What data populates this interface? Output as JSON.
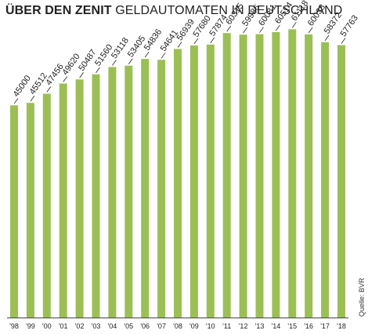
{
  "title": {
    "bold": "ÜBER DEN ZENIT",
    "light": "GELDAUTOMATEN IN DEUTSCHLAND"
  },
  "source": "Quelle: BVR",
  "colors": {
    "bar": "#9bbf55",
    "line": "#222222"
  },
  "chart_data": {
    "type": "bar",
    "categories": [
      "'98",
      "'99",
      "'00",
      "'01",
      "'02",
      "'03",
      "'04",
      "'05",
      "'06",
      "'07",
      "'08",
      "'09",
      "'10",
      "'11",
      "'12",
      "'13",
      "'14",
      "'15",
      "'16",
      "'17",
      "'18"
    ],
    "values": [
      45000,
      45512,
      47456,
      49620,
      50487,
      51560,
      53118,
      53405,
      54836,
      54641,
      56939,
      57680,
      57874,
      60315,
      59986,
      60081,
      60514,
      61118,
      60038,
      58372,
      57763
    ],
    "value_labels": [
      "45000",
      "45512",
      "47456",
      "49620",
      "50487",
      "51560",
      "53118",
      "53405",
      "54836",
      "54641",
      "56939",
      "57680",
      "57874",
      "60315",
      "59986",
      "60081",
      "60514",
      "61118",
      "60038",
      "58372",
      "57763"
    ],
    "ylim": [
      0,
      64000
    ],
    "grid": false,
    "legend": "none",
    "title": "ÜBER DEN ZENIT GELDAUTOMATEN IN DEUTSCHLAND"
  }
}
